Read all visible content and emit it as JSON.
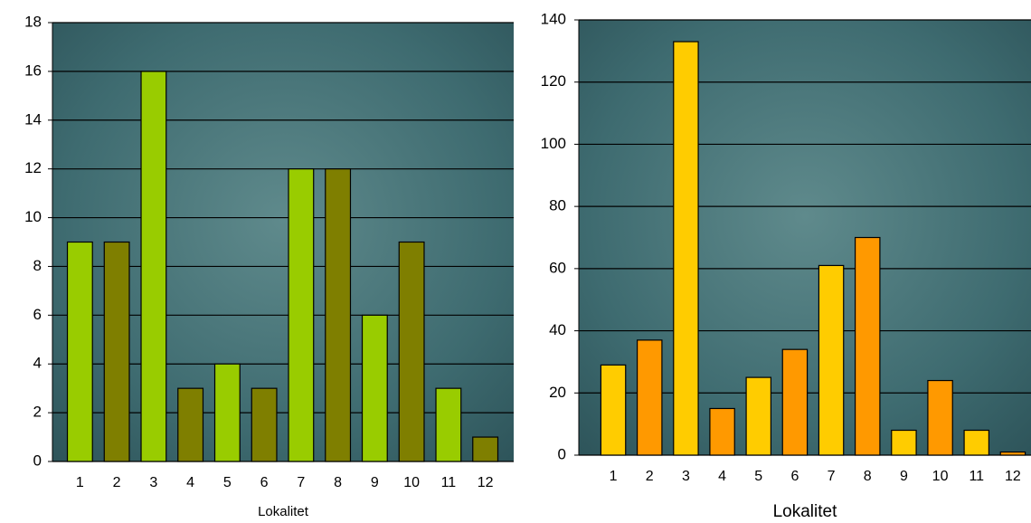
{
  "chart_data": [
    {
      "type": "bar",
      "x_label": "Lokalitet",
      "categories": [
        "1",
        "2",
        "3",
        "4",
        "5",
        "6",
        "7",
        "8",
        "9",
        "10",
        "11",
        "12"
      ],
      "values": [
        9,
        9,
        16,
        3,
        4,
        3,
        12,
        12,
        6,
        9,
        3,
        1
      ],
      "colors": [
        "#99cc00",
        "#7f7f00",
        "#99cc00",
        "#7f7f00",
        "#99cc00",
        "#7f7f00",
        "#99cc00",
        "#7f7f00",
        "#99cc00",
        "#7f7f00",
        "#99cc00",
        "#7f7f00"
      ],
      "ylim": [
        0,
        18
      ],
      "yticks": [
        0,
        2,
        4,
        6,
        8,
        10,
        12,
        14,
        16,
        18
      ],
      "grid": true
    },
    {
      "type": "bar",
      "x_label": "Lokalitet",
      "categories": [
        "1",
        "2",
        "3",
        "4",
        "5",
        "6",
        "7",
        "8",
        "9",
        "10",
        "11",
        "12"
      ],
      "values": [
        29,
        37,
        133,
        15,
        25,
        34,
        61,
        70,
        8,
        24,
        8,
        1
      ],
      "colors": [
        "#ffcc00",
        "#ff9900",
        "#ffcc00",
        "#ff9900",
        "#ffcc00",
        "#ff9900",
        "#ffcc00",
        "#ff9900",
        "#ffcc00",
        "#ff9900",
        "#ffcc00",
        "#ff9900"
      ],
      "ylim": [
        0,
        140
      ],
      "yticks": [
        0,
        20,
        40,
        60,
        80,
        100,
        120,
        140
      ],
      "grid": true
    }
  ]
}
